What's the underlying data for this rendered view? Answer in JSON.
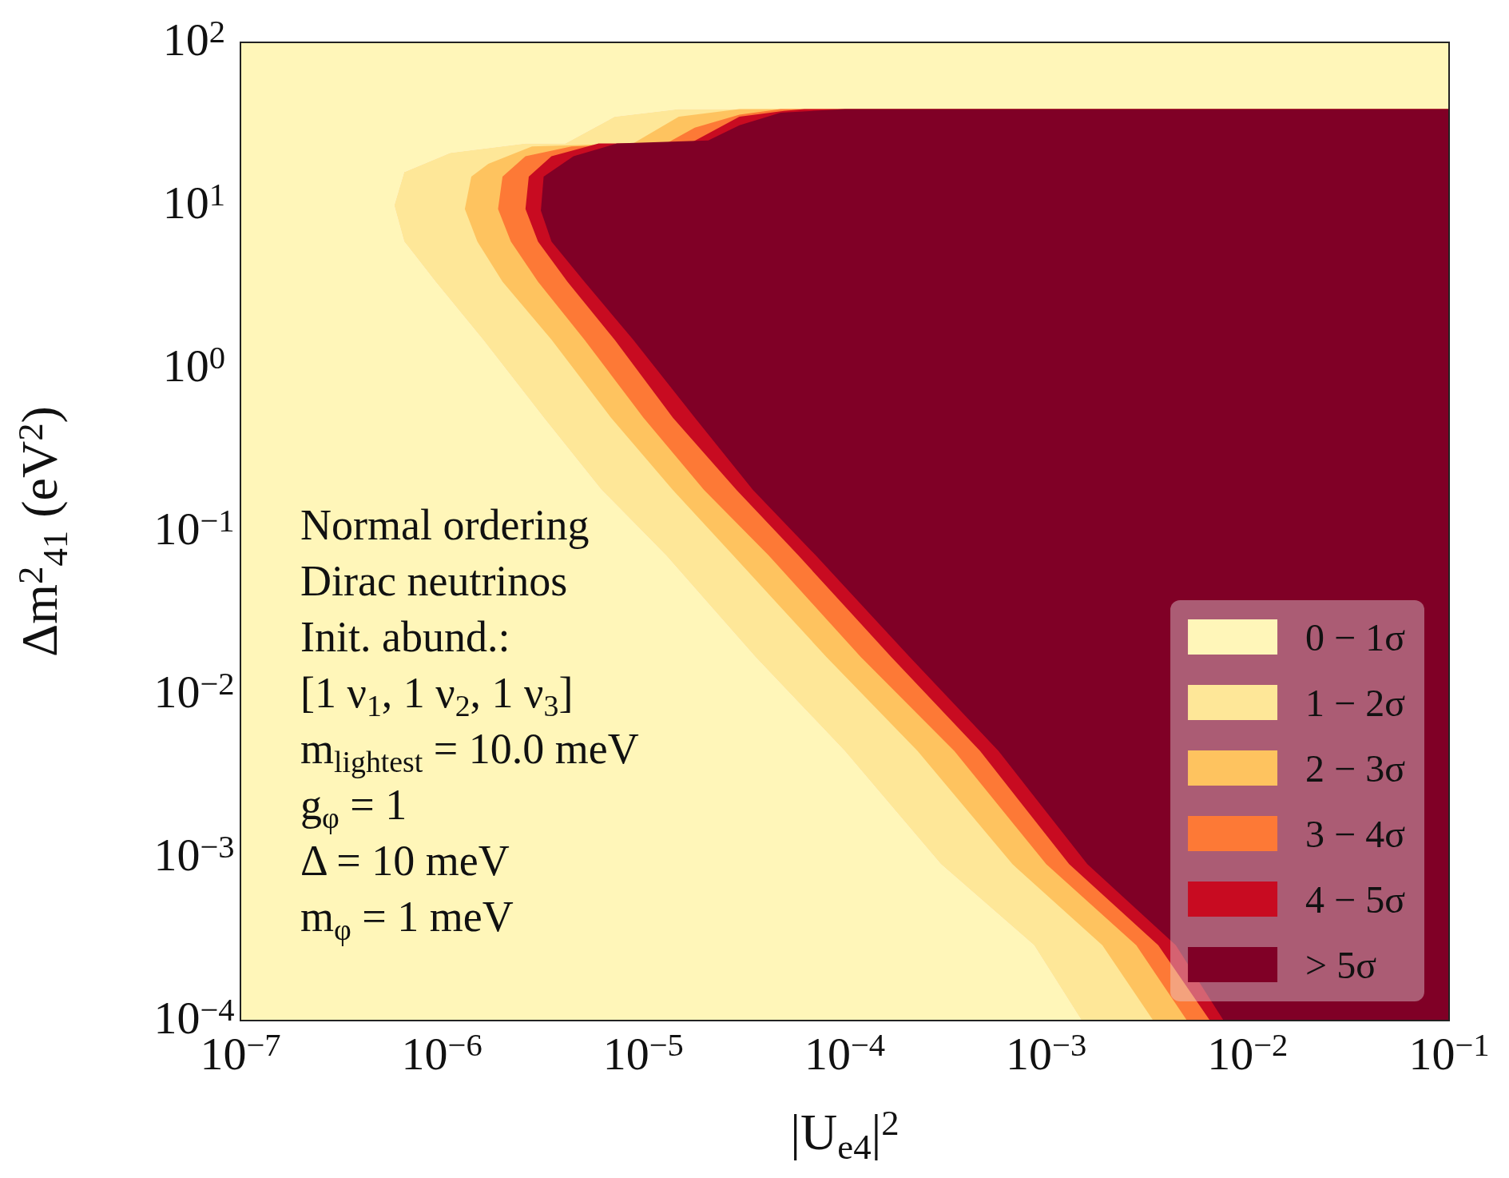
{
  "chart_data": {
    "type": "area",
    "xlabel": "|U$_{e4}$|$^{2}$",
    "ylabel": "Δm$^{2}$$_{41}$ (eV$^{2}$)",
    "log": "xy",
    "legend": "bottom right",
    "xlim": [
      1e-07,
      0.1
    ],
    "ylim": [
      0.0001,
      100
    ],
    "xticks": [
      {
        "value": 1e-07,
        "label": "10$^{−7}$"
      },
      {
        "value": 1e-06,
        "label": "10$^{−6}$"
      },
      {
        "value": 1e-05,
        "label": "10$^{−5}$"
      },
      {
        "value": 0.0001,
        "label": "10$^{−4}$"
      },
      {
        "value": 0.001,
        "label": "10$^{−3}$"
      },
      {
        "value": 0.01,
        "label": "10$^{−2}$"
      },
      {
        "value": 0.1,
        "label": "10$^{−1}$"
      }
    ],
    "yticks": [
      {
        "value": 0.0001,
        "label": "10$^{−4}$"
      },
      {
        "value": 0.001,
        "label": "10$^{−3}$"
      },
      {
        "value": 0.01,
        "label": "10$^{−2}$"
      },
      {
        "value": 0.1,
        "label": "10$^{−1}$"
      },
      {
        "value": 1,
        "label": "10$^{0}$"
      },
      {
        "value": 10,
        "label": "10$^{1}$"
      },
      {
        "value": 100,
        "label": "10$^{2}$"
      }
    ],
    "series": [
      {
        "name": "0 − 1σ",
        "color": "#fff6b9",
        "x": [
          1e-07,
          0.1,
          0.1,
          1.5e-05,
          7.2e-06,
          4.1e-06,
          2.6e-06,
          1.1e-06,
          6.5e-07,
          5.8e-07,
          6.5e-07,
          9.3e-07,
          1.6e-06,
          3.2e-06,
          6.2e-06,
          1.3e-05,
          3.6e-05,
          0.0001,
          0.0003,
          0.00087,
          0.0015,
          1e-07
        ],
        "values": [
          100,
          100,
          39,
          39,
          35,
          24,
          24,
          21,
          16,
          10,
          6.0,
          3.4,
          1.5,
          0.5,
          0.18,
          0.071,
          0.017,
          0.0045,
          0.00091,
          0.00029,
          0.0001,
          0.0001
        ]
      },
      {
        "name": "1 − 2σ",
        "color": "#fee798",
        "x": [
          0.1,
          1.5e-05,
          7.2e-06,
          4.1e-06,
          2.6e-06,
          1.1e-06,
          6.5e-07,
          5.8e-07,
          6.5e-07,
          9.3e-07,
          1.6e-06,
          3.2e-06,
          6.2e-06,
          1.3e-05,
          3.6e-05,
          0.0001,
          0.0003,
          0.00087,
          0.0015,
          0.1
        ],
        "values": [
          39,
          39,
          35,
          24,
          24,
          21,
          16,
          10,
          6.0,
          3.4,
          1.5,
          0.5,
          0.18,
          0.071,
          0.017,
          0.0045,
          0.00091,
          0.00029,
          0.0001,
          0.0001
        ]
      },
      {
        "name": "2 − 3σ",
        "color": "#fec35f",
        "x": [
          0.1,
          3e-05,
          1.5e-05,
          8.9e-06,
          2.8e-06,
          1.7e-06,
          1.4e-06,
          1.3e-06,
          1.5e-06,
          2e-06,
          3.5e-06,
          6.9e-06,
          1.4e-05,
          2.8e-05,
          8.1e-05,
          0.00023,
          0.00068,
          0.0019,
          0.0034,
          0.1
        ],
        "values": [
          39,
          39,
          35,
          24,
          23,
          18,
          15,
          9.5,
          6.0,
          3.4,
          1.5,
          0.5,
          0.18,
          0.071,
          0.017,
          0.0045,
          0.00091,
          0.00029,
          0.0001,
          0.0001
        ]
      },
      {
        "name": "3 − 4σ",
        "color": "#fd7936",
        "x": [
          0.1,
          4.8e-05,
          3e-05,
          1.8e-05,
          1.3e-05,
          4.4e-06,
          2.6e-06,
          2e-06,
          1.9e-06,
          2.2e-06,
          3e-06,
          5.1e-06,
          1e-05,
          2e-05,
          4.2e-05,
          0.00012,
          0.00035,
          0.001,
          0.0028,
          0.005,
          0.1
        ],
        "values": [
          39,
          39,
          36,
          30,
          24,
          23,
          20,
          15,
          9.5,
          6.0,
          3.4,
          1.5,
          0.5,
          0.18,
          0.071,
          0.017,
          0.0045,
          0.00091,
          0.00029,
          0.0001,
          0.0001
        ]
      },
      {
        "name": "4 − 5σ",
        "color": "#c80b21",
        "x": [
          0.1,
          6.3e-05,
          5e-05,
          3e-05,
          1.7e-05,
          6e-06,
          3.5e-06,
          2.7e-06,
          2.6e-06,
          3e-06,
          4.2e-06,
          7.2e-06,
          1.4e-05,
          2.9e-05,
          5.9e-05,
          0.00017,
          0.00047,
          0.0013,
          0.0036,
          0.0065,
          0.1
        ],
        "values": [
          39,
          39,
          38,
          35,
          24,
          24,
          20,
          15,
          9.5,
          6.0,
          3.4,
          1.5,
          0.5,
          0.18,
          0.071,
          0.017,
          0.0045,
          0.00091,
          0.00029,
          0.0001,
          0.0001
        ]
      },
      {
        "name": "> 5σ",
        "color": "#800026",
        "x": [
          0.1,
          0.0001,
          4.8e-05,
          3e-05,
          2.1e-05,
          7.4e-06,
          4.5e-06,
          3.2e-06,
          3.1e-06,
          3.5e-06,
          5.1e-06,
          8.9e-06,
          1.8e-05,
          3.5e-05,
          7.2e-05,
          0.00021,
          0.00058,
          0.0016,
          0.0044,
          0.0076,
          0.1
        ],
        "values": [
          39,
          39,
          37,
          31,
          25,
          24,
          20,
          15,
          9.3,
          6.0,
          3.4,
          1.5,
          0.5,
          0.18,
          0.071,
          0.017,
          0.0045,
          0.00091,
          0.00029,
          0.0001,
          0.0001
        ]
      }
    ],
    "annotations": [
      "Normal ordering",
      "Dirac neutrinos",
      "Init. abund.:",
      "[1 ν$_{1}$, 1 ν$_{2}$, 1 ν$_{3}$]",
      "m$_{lightest}$ = 10.0 meV",
      "g$_{φ}$ = 1",
      "Δ = 10 meV",
      "m$_{φ}$ = 1 meV"
    ]
  }
}
